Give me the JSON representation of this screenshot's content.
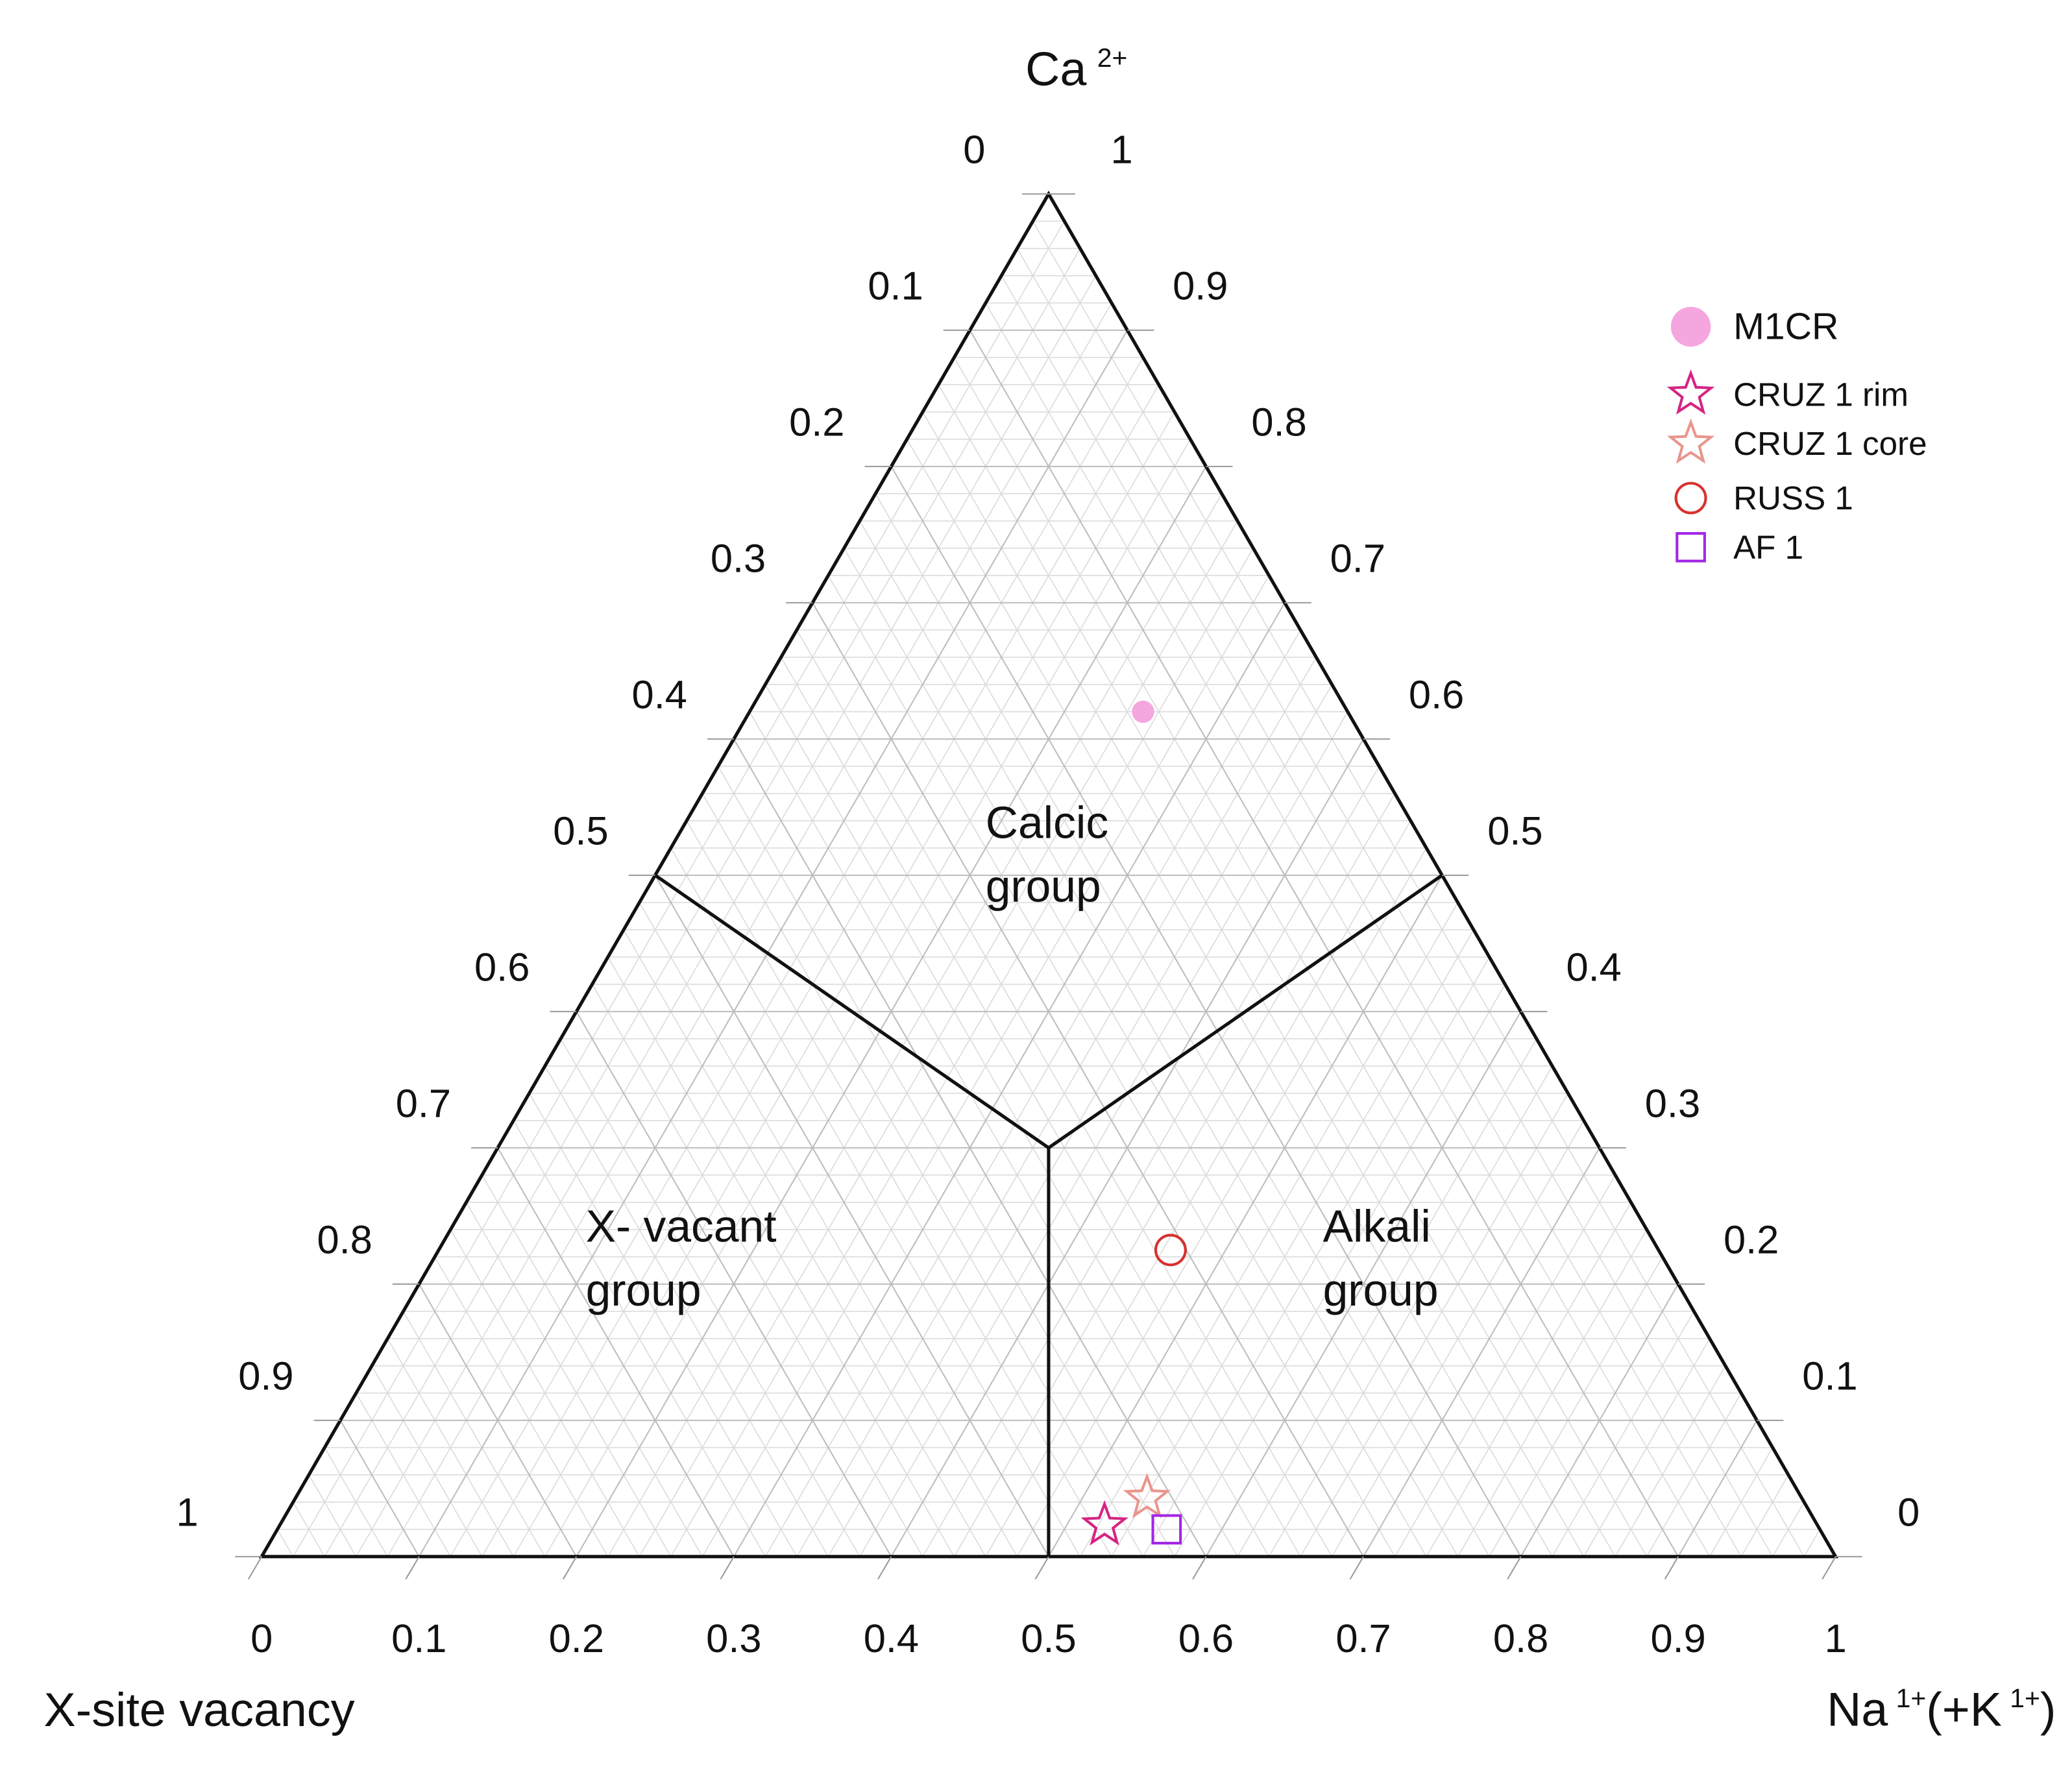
{
  "chart_data": {
    "type": "ternary",
    "ca_label": "Ca",
    "ca_label_sup": "2+",
    "vacancy_label": "X-site vacancy",
    "na_label": [
      {
        "text": "Na"
      },
      {
        "sup": "1+"
      },
      {
        "text": "(+K"
      },
      {
        "sup": "1+"
      },
      {
        "text": ")"
      }
    ],
    "vacancy_ticks": [
      0,
      0.1,
      0.2,
      0.3,
      0.4,
      0.5,
      0.6,
      0.7,
      0.8,
      0.9,
      1
    ],
    "ca_ticks": [
      0,
      0.1,
      0.2,
      0.3,
      0.4,
      0.5,
      0.6,
      0.7,
      0.8,
      0.9,
      1
    ],
    "na_ticks": [
      0,
      0.1,
      0.2,
      0.3,
      0.4,
      0.5,
      0.6,
      0.7,
      0.8,
      0.9,
      1
    ],
    "grid": true,
    "minor_grid": true,
    "legend": "upper right",
    "regions": [
      {
        "lines": [
          "Calcic",
          "group"
        ]
      },
      {
        "lines": [
          "X- vacant",
          "group"
        ]
      },
      {
        "lines": [
          "Alkali",
          "group"
        ]
      }
    ],
    "boundaries": [
      {
        "ca": [
          0.5,
          0.3
        ],
        "na": [
          0,
          0.35
        ]
      },
      {
        "ca": [
          0.5,
          0.3
        ],
        "na": [
          0.5,
          0.35
        ]
      },
      {
        "ca": [
          0.3,
          0
        ],
        "na": [
          0.35,
          0.5
        ]
      }
    ],
    "series": [
      {
        "name": "M1CR",
        "color": "#f5a6df",
        "marker": "filled-circle",
        "ca": [
          0.62
        ],
        "na": [
          0.25
        ]
      },
      {
        "name": "CRUZ 1 rim",
        "color": "#d42483",
        "marker": "star",
        "ca": [
          0.023
        ],
        "na": [
          0.524
        ]
      },
      {
        "name": "CRUZ 1 core",
        "color": "#e9958c",
        "marker": "star",
        "ca": [
          0.043
        ],
        "na": [
          0.541
        ]
      },
      {
        "name": "RUSS 1",
        "color": "#d8302e",
        "marker": "open-circle",
        "ca": [
          0.225
        ],
        "na": [
          0.465
        ]
      },
      {
        "name": "AF 1",
        "color": "#a326e6",
        "marker": "open-square",
        "ca": [
          0.02
        ],
        "na": [
          0.565
        ]
      }
    ]
  }
}
